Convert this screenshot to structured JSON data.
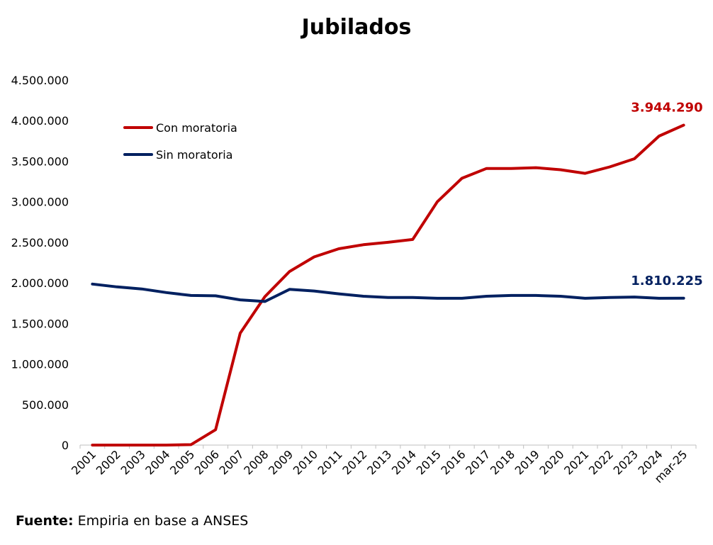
{
  "chart_data": {
    "type": "line",
    "title": "Jubilados",
    "xlabel": "",
    "ylabel": "",
    "ylim": [
      0,
      4500000
    ],
    "yticks": [
      0,
      500000,
      1000000,
      1500000,
      2000000,
      2500000,
      3000000,
      3500000,
      4000000,
      4500000
    ],
    "ytick_labels": [
      "0",
      "500.000",
      "1.000.000",
      "1.500.000",
      "2.000.000",
      "2.500.000",
      "3.000.000",
      "3.500.000",
      "4.000.000",
      "4.500.000"
    ],
    "categories": [
      "2001",
      "2002",
      "2003",
      "2004",
      "2005",
      "2006",
      "2007",
      "2008",
      "2009",
      "2010",
      "2011",
      "2012",
      "2013",
      "2014",
      "2015",
      "2016",
      "2017",
      "2018",
      "2019",
      "2020",
      "2021",
      "2022",
      "2023",
      "2024",
      "mar-25"
    ],
    "grid": false,
    "legend_position": "top-left",
    "series": [
      {
        "name": "Con moratoria",
        "color": "#C00000",
        "values": [
          0,
          0,
          0,
          0,
          5000,
          190000,
          1380000,
          1830000,
          2140000,
          2320000,
          2420000,
          2470000,
          2500000,
          2535000,
          3000000,
          3290000,
          3410000,
          3410000,
          3420000,
          3395000,
          3350000,
          3430000,
          3530000,
          3810000,
          3944290
        ],
        "end_label": "3.944.290"
      },
      {
        "name": "Sin moratoria",
        "color": "#002060",
        "values": [
          1985000,
          1950000,
          1925000,
          1880000,
          1845000,
          1840000,
          1790000,
          1770000,
          1920000,
          1900000,
          1865000,
          1835000,
          1820000,
          1820000,
          1810000,
          1810000,
          1835000,
          1845000,
          1845000,
          1835000,
          1810000,
          1820000,
          1825000,
          1810000,
          1810225
        ],
        "end_label": "1.810.225"
      }
    ]
  },
  "source": {
    "label": "Fuente:",
    "text": "Empiria en base a ANSES"
  }
}
